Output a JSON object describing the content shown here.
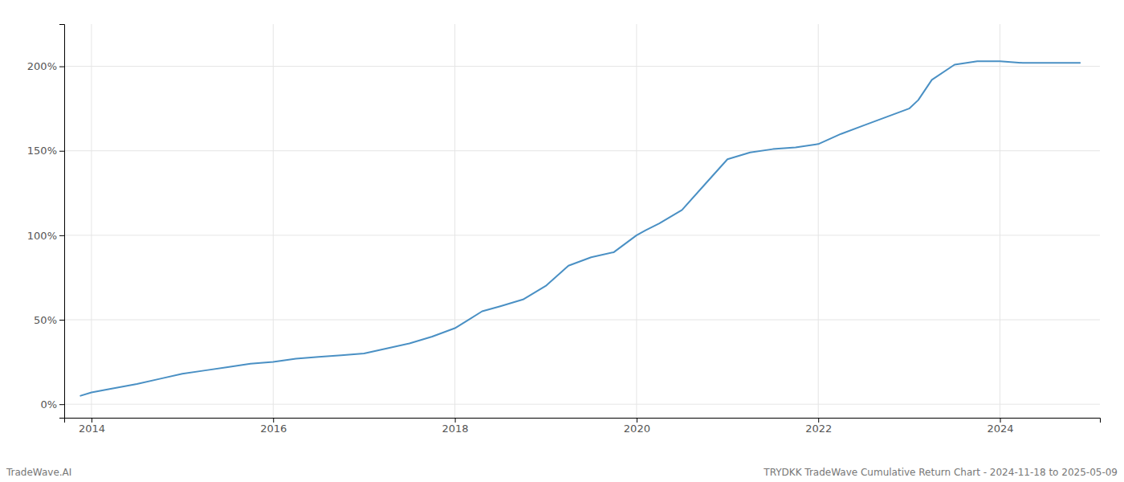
{
  "chart_data": {
    "type": "line",
    "title": "TRYDKK TradeWave Cumulative Return Chart - 2024-11-18 to 2025-05-09",
    "annotations": [
      "TradeWave.AI"
    ],
    "color": "#4a90c4",
    "grid": true,
    "x": [
      2013.88,
      2014.0,
      2014.2,
      2014.5,
      2014.75,
      2015.0,
      2015.25,
      2015.5,
      2015.75,
      2016.0,
      2016.25,
      2016.5,
      2016.75,
      2017.0,
      2017.25,
      2017.5,
      2017.75,
      2018.0,
      2018.15,
      2018.3,
      2018.5,
      2018.75,
      2019.0,
      2019.25,
      2019.5,
      2019.75,
      2020.0,
      2020.1,
      2020.25,
      2020.5,
      2020.75,
      2021.0,
      2021.25,
      2021.5,
      2021.75,
      2022.0,
      2022.25,
      2022.5,
      2022.75,
      2023.0,
      2023.1,
      2023.25,
      2023.5,
      2023.75,
      2024.0,
      2024.25,
      2024.5,
      2024.75,
      2024.88
    ],
    "values": [
      5,
      7,
      9,
      12,
      15,
      18,
      20,
      22,
      24,
      25,
      27,
      28,
      29,
      30,
      33,
      36,
      40,
      45,
      50,
      55,
      58,
      62,
      70,
      82,
      87,
      90,
      100,
      103,
      107,
      115,
      130,
      145,
      149,
      151,
      152,
      154,
      160,
      165,
      170,
      175,
      180,
      192,
      201,
      203,
      203,
      202,
      202,
      202,
      202
    ],
    "xlim": [
      2013.7,
      2025.1
    ],
    "xticks": [
      2014,
      2016,
      2018,
      2020,
      2022,
      2024
    ],
    "ylim": [
      -8,
      225
    ],
    "yticks": [
      {
        "value": 0,
        "label": "0%"
      },
      {
        "value": 50,
        "label": "50%"
      },
      {
        "value": 100,
        "label": "100%"
      },
      {
        "value": 150,
        "label": "150%"
      },
      {
        "value": 200,
        "label": "200%"
      }
    ]
  }
}
